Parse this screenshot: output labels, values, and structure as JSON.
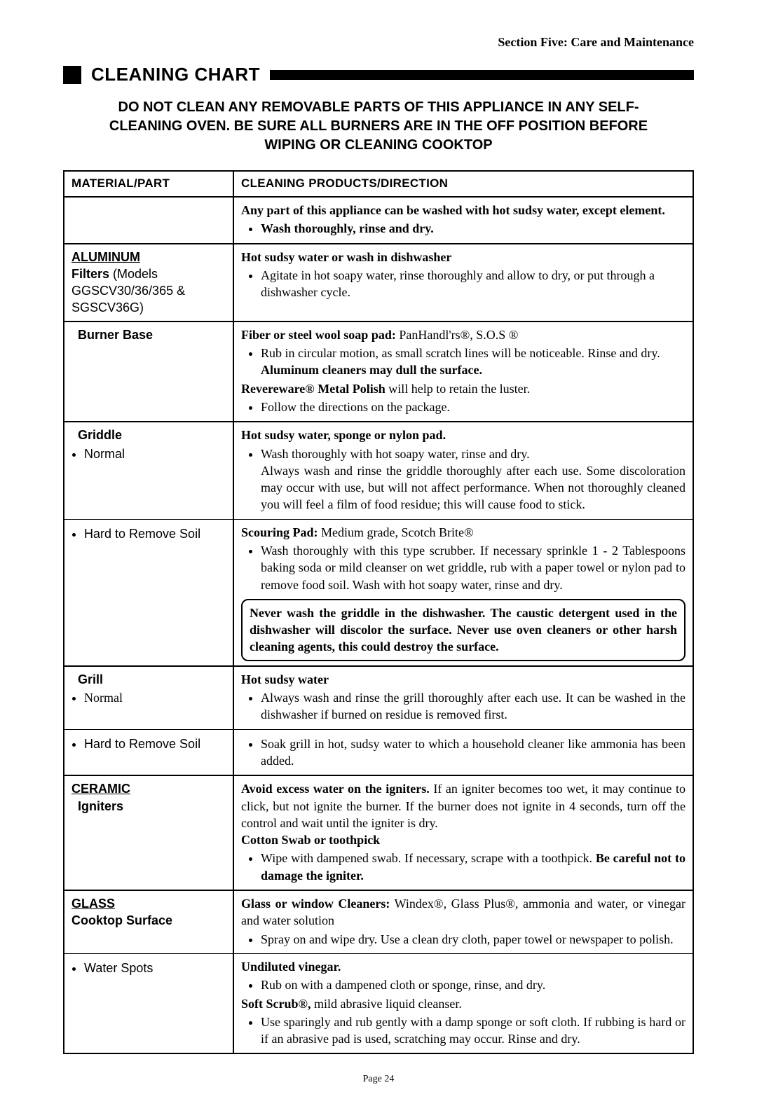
{
  "section_header": "Section Five: Care and Maintenance",
  "title": "CLEANING CHART",
  "warning": "DO NOT CLEAN ANY REMOVABLE PARTS OF THIS APPLIANCE IN ANY SELF-CLEANING OVEN. BE SURE ALL BURNERS ARE IN THE OFF POSITION BEFORE WIPING OR CLEANING COOKTOP",
  "columns": {
    "material": "MATERIAL/PART",
    "direction": "CLEANING PRODUCTS/DIRECTION"
  },
  "general_note_1": "Any part of this appliance can be washed with hot sudsy water, except element.",
  "general_note_bullet": "Wash thoroughly, rinse and dry.",
  "aluminum": {
    "heading": "ALUMINUM",
    "filters_label": "Filters",
    "filters_models": " (Models GGSCV30/36/365 & SGSCV36G)",
    "filters_lead": "Hot sudsy water or wash in dishwasher",
    "filters_bullet": "Agitate in hot soapy water, rinse thoroughly and allow to dry, or put through a dishwasher cycle.",
    "burner_label": "Burner Base",
    "burner_lead": "Fiber or steel wool soap pad:",
    "burner_lead_tail": "  PanHandl'rs®, S.O.S ®",
    "burner_b1": "Rub in circular motion, as small scratch lines will be noticeable. Rinse and dry. ",
    "burner_b1_bold": "Aluminum cleaners may dull the surface.",
    "burner_lead2a": "Revereware® Metal Polish",
    "burner_lead2b": " will help to retain the luster.",
    "burner_b2": "Follow the directions on the package.",
    "griddle_label": "Griddle",
    "griddle_normal": "Normal",
    "griddle_lead": "Hot sudsy water, sponge or nylon pad.",
    "griddle_b1": "Wash thoroughly with hot soapy water, rinse and dry.\nAlways wash and rinse the griddle thoroughly after each use. Some discoloration may occur with use, but will not affect performance. When not thoroughly cleaned you will feel a film of food residue; this will cause food to stick.",
    "griddle_hard_label": "Hard to Remove Soil",
    "griddle_hard_lead": "Scouring Pad:",
    "griddle_hard_lead_tail": " Medium grade, Scotch Brite®",
    "griddle_hard_b1": "Wash thoroughly with this type scrubber. If necessary sprinkle 1 - 2 Tablespoons baking soda or mild cleanser on wet griddle, rub with a paper towel or nylon pad to remove food soil. Wash with hot soapy water, rinse and dry.",
    "griddle_box": "Never wash the griddle in the dishwasher. The caustic detergent used in the dishwasher will discolor the surface. Never use oven cleaners or other harsh cleaning agents, this could destroy the surface.",
    "grill_label": "Grill",
    "grill_normal": "Normal",
    "grill_lead": "Hot sudsy water",
    "grill_b1": "Always wash and rinse the grill thoroughly after each use. It can be washed in the dishwasher if burned on residue is removed first.",
    "grill_hard_label": "Hard to Remove Soil",
    "grill_hard_b1": "Soak grill in hot, sudsy water to which a household cleaner like ammonia has been added."
  },
  "ceramic": {
    "heading": "CERAMIC",
    "ign_label": "Igniters",
    "ign_para": "Avoid excess water on the igniters.",
    "ign_para_tail": " If an igniter becomes too wet, it may continue to click, but not ignite the burner. If the burner does not ignite in 4 seconds, turn off the control and wait until the igniter is dry.",
    "ign_lead2": "Cotton Swab or toothpick",
    "ign_b1": "Wipe with dampened swab. If necessary, scrape with a toothpick. ",
    "ign_b1_bold": "Be careful not to damage the igniter."
  },
  "glass": {
    "heading": "GLASS",
    "cook_label": "Cooktop Surface",
    "cook_lead": "Glass or window Cleaners:",
    "cook_lead_tail": " Windex®, Glass Plus®, ammonia and water, or vinegar and water solution",
    "cook_b1": "Spray on and wipe dry. Use a clean dry cloth, paper towel or newspaper to polish.",
    "water_label": "Water Spots",
    "water_lead1": "Undiluted vinegar.",
    "water_b1": "Rub on with a dampened cloth or sponge, rinse, and dry.",
    "water_lead2a": "Soft Scrub®,",
    "water_lead2b": "  mild abrasive liquid cleanser.",
    "water_b2": "Use sparingly and rub gently with a damp sponge or soft cloth. If rubbing is hard or if an abrasive pad is used, scratching may occur. Rinse and dry."
  },
  "footer": "Page 24"
}
